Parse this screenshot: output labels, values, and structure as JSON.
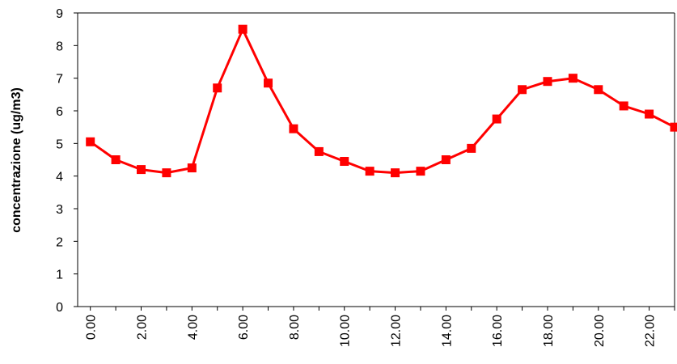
{
  "chart_data": {
    "type": "line",
    "title": "",
    "xlabel": "",
    "ylabel": "concentrazione (ug/m3)",
    "ylim": [
      0,
      9
    ],
    "y_ticks": [
      "0",
      "1",
      "2",
      "3",
      "4",
      "5",
      "6",
      "7",
      "8",
      "9"
    ],
    "x_categories": [
      "0.00",
      "1.00",
      "2.00",
      "3.00",
      "4.00",
      "5.00",
      "6.00",
      "7.00",
      "8.00",
      "9.00",
      "10.00",
      "11.00",
      "12.00",
      "13.00",
      "14.00",
      "15.00",
      "16.00",
      "17.00",
      "18.00",
      "19.00",
      "20.00",
      "21.00",
      "22.00",
      "23.00"
    ],
    "x_tick_labels": [
      "0.00",
      "",
      "2.00",
      "",
      "4.00",
      "",
      "6.00",
      "",
      "8.00",
      "",
      "10.00",
      "",
      "12.00",
      "",
      "14.00",
      "",
      "16.00",
      "",
      "18.00",
      "",
      "20.00",
      "",
      "22.00",
      ""
    ],
    "grid": false,
    "legend": "none",
    "series": [
      {
        "color": "#ff0000",
        "values": [
          5.05,
          4.5,
          4.2,
          4.1,
          4.25,
          6.7,
          8.5,
          6.85,
          5.45,
          4.75,
          4.45,
          4.15,
          4.1,
          4.15,
          4.5,
          4.85,
          5.75,
          6.65,
          6.9,
          7.0,
          6.65,
          6.15,
          5.9,
          5.5
        ]
      }
    ]
  }
}
